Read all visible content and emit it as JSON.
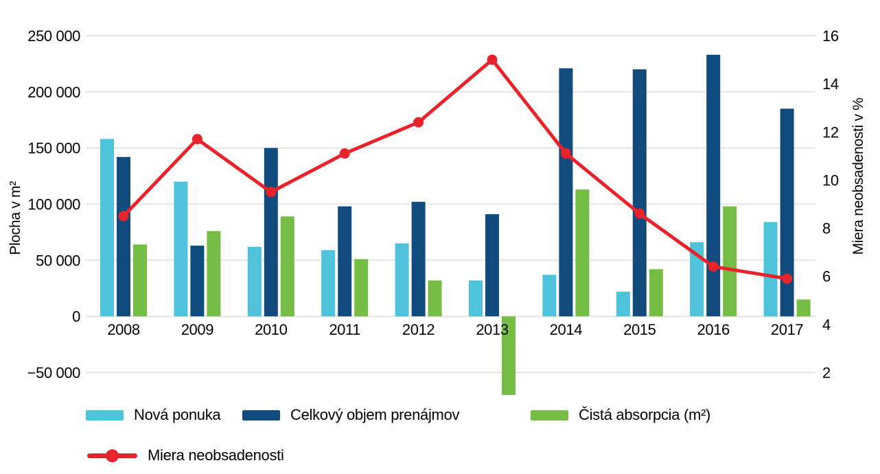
{
  "page": {
    "background": "#FFFFFF"
  },
  "chart_data": {
    "type": "bar+line",
    "categories": [
      "2008",
      "2009",
      "2010",
      "2011",
      "2012",
      "2013",
      "2014",
      "2015",
      "2016",
      "2017"
    ],
    "series": [
      {
        "name": "Nová ponuka",
        "type": "bar",
        "axis": "left",
        "color": "#4FC3D9",
        "values": [
          158000,
          120000,
          62000,
          59000,
          65000,
          32000,
          37000,
          22000,
          66000,
          84000
        ]
      },
      {
        "name": "Celkový objem prenájmov",
        "type": "bar",
        "axis": "left",
        "color": "#114B7E",
        "values": [
          142000,
          63000,
          150000,
          98000,
          102000,
          91000,
          221000,
          220000,
          233000,
          185000
        ]
      },
      {
        "name": "Čistá absorpcia (m²)",
        "type": "bar",
        "axis": "left",
        "color": "#75BD44",
        "values": [
          64000,
          76000,
          89000,
          51000,
          32000,
          -70000,
          113000,
          42000,
          98000,
          15000
        ]
      },
      {
        "name": "Miera neobsadenosti",
        "type": "line",
        "axis": "right",
        "color": "#E8232B",
        "values": [
          8.5,
          11.7,
          9.5,
          11.1,
          12.4,
          15.0,
          11.1,
          8.6,
          6.4,
          5.9
        ]
      }
    ],
    "left_axis": {
      "label": "Plocha v m²",
      "min": -50000,
      "max": 250000,
      "ticks": [
        250000,
        200000,
        150000,
        100000,
        50000,
        0,
        -50000
      ],
      "tick_labels": [
        "250 000",
        "200 000",
        "150 000",
        "100 000",
        "50 000",
        "0",
        "−50 000"
      ]
    },
    "right_axis": {
      "label": "Miera neobsadenosti v %",
      "min": 2,
      "max": 16,
      "ticks": [
        16,
        14,
        12,
        10,
        8,
        6,
        4,
        2
      ],
      "tick_labels": [
        "16",
        "14",
        "12",
        "10",
        "8",
        "6",
        "4",
        "2"
      ]
    },
    "grid": true,
    "grid_color": "#E4E4E4",
    "legend_position": "bottom-left"
  }
}
